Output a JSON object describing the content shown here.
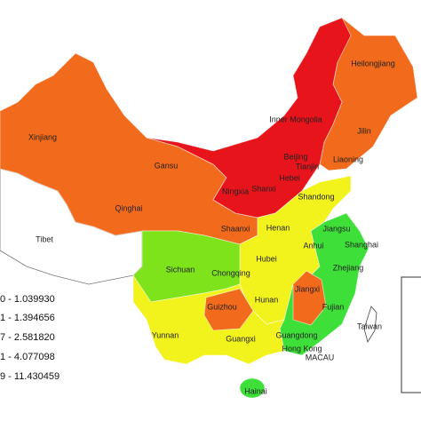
{
  "regions": [
    "Heilongjiang",
    "Jilin",
    "Liaoning",
    "Inner Mongolia",
    "Beijing",
    "Tianjin",
    "Hebei",
    "Shanxi",
    "Ningxia",
    "Gansu",
    "Xinjiang",
    "Qinghai",
    "Tibet",
    "Shandong",
    "Shaanxi",
    "Henan",
    "Jiangsu",
    "Anhui",
    "Shanghai",
    "Sichuan",
    "Chongqing",
    "Hubei",
    "Zhejiang",
    "Hunan",
    "Jiangxi",
    "Guizhou",
    "Fujian",
    "Yunnan",
    "Guangxi",
    "Guangdong",
    "Hong Kong",
    "MACAU",
    "Taiwan",
    "Hainai"
  ],
  "legend": [
    "0 - 1.039930",
    "1 - 1.394656",
    "7 - 2.581820",
    "1 - 4.077098",
    "9 - 11.430459"
  ]
}
